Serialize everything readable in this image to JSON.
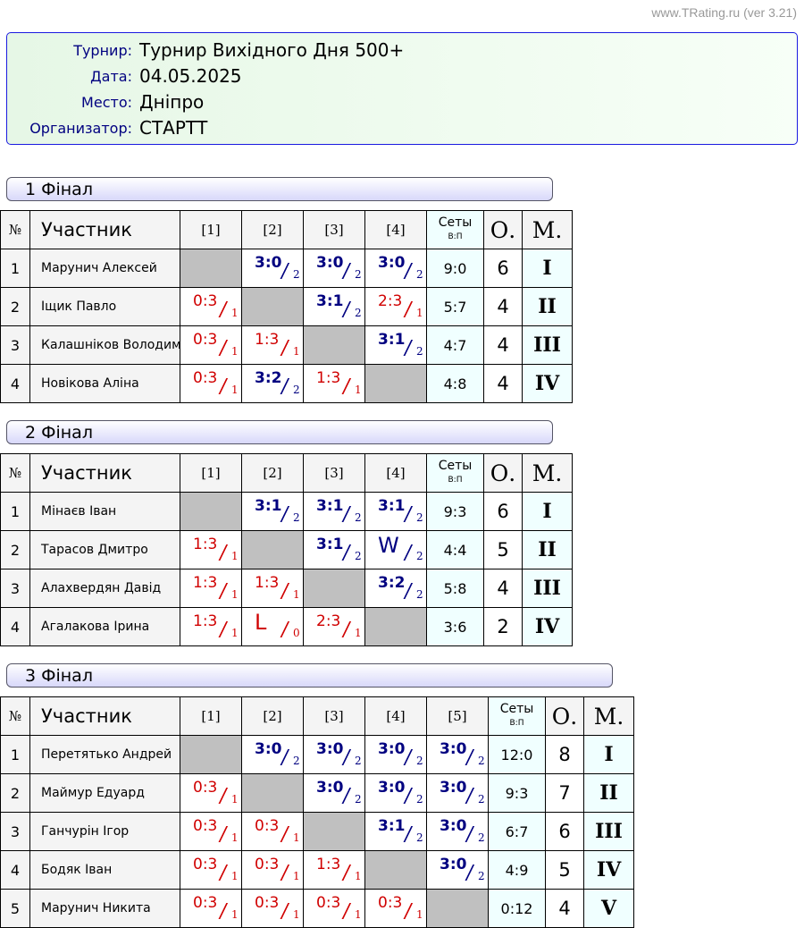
{
  "site": "www.TRating.ru (ver 3.21)",
  "info": [
    {
      "label": "Турнир:",
      "value": "Турнир Вихідного Дня 500+"
    },
    {
      "label": "Дата:",
      "value": "04.05.2025"
    },
    {
      "label": "Место:",
      "value": "Дніпро"
    },
    {
      "label": "Организатор:",
      "value": "СТАРТТ"
    }
  ],
  "headers": {
    "num": "№",
    "name": "Участник",
    "sets": "Сеты",
    "sets_sub": "В:П",
    "points": "О.",
    "place": "М."
  },
  "colors": {
    "win": "#000080",
    "loss": "#d00000",
    "self": "#c0c0c0"
  },
  "groups": [
    {
      "title": "1 Фінал",
      "players": [
        {
          "num": "1",
          "name": "Марунич Алексей",
          "results": [
            null,
            {
              "s": "3:0",
              "p": "2",
              "w": true
            },
            {
              "s": "3:0",
              "p": "2",
              "w": true
            },
            {
              "s": "3:0",
              "p": "2",
              "w": true
            }
          ],
          "sets": "9:0",
          "points": "6",
          "place": "I"
        },
        {
          "num": "2",
          "name": "Іщик Павло",
          "results": [
            {
              "s": "0:3",
              "p": "1",
              "w": false
            },
            null,
            {
              "s": "3:1",
              "p": "2",
              "w": true
            },
            {
              "s": "2:3",
              "p": "1",
              "w": false
            }
          ],
          "sets": "5:7",
          "points": "4",
          "place": "II"
        },
        {
          "num": "3",
          "name": "Калашніков Володимир",
          "results": [
            {
              "s": "0:3",
              "p": "1",
              "w": false
            },
            {
              "s": "1:3",
              "p": "1",
              "w": false
            },
            null,
            {
              "s": "3:1",
              "p": "2",
              "w": true
            }
          ],
          "sets": "4:7",
          "points": "4",
          "place": "III"
        },
        {
          "num": "4",
          "name": "Новікова Аліна",
          "results": [
            {
              "s": "0:3",
              "p": "1",
              "w": false
            },
            {
              "s": "3:2",
              "p": "2",
              "w": true
            },
            {
              "s": "1:3",
              "p": "1",
              "w": false
            },
            null
          ],
          "sets": "4:8",
          "points": "4",
          "place": "IV"
        }
      ]
    },
    {
      "title": "2 Фінал",
      "players": [
        {
          "num": "1",
          "name": "Мінаєв Іван",
          "results": [
            null,
            {
              "s": "3:1",
              "p": "2",
              "w": true
            },
            {
              "s": "3:1",
              "p": "2",
              "w": true
            },
            {
              "s": "3:1",
              "p": "2",
              "w": true
            }
          ],
          "sets": "9:3",
          "points": "6",
          "place": "I"
        },
        {
          "num": "2",
          "name": "Тарасов Дмитро",
          "results": [
            {
              "s": "1:3",
              "p": "1",
              "w": false
            },
            null,
            {
              "s": "3:1",
              "p": "2",
              "w": true
            },
            {
              "s": "W",
              "p": "2",
              "w": true
            }
          ],
          "sets": "4:4",
          "points": "5",
          "place": "II"
        },
        {
          "num": "3",
          "name": "Алахвердян Давід",
          "results": [
            {
              "s": "1:3",
              "p": "1",
              "w": false
            },
            {
              "s": "1:3",
              "p": "1",
              "w": false
            },
            null,
            {
              "s": "3:2",
              "p": "2",
              "w": true
            }
          ],
          "sets": "5:8",
          "points": "4",
          "place": "III"
        },
        {
          "num": "4",
          "name": "Агалакова Ірина",
          "results": [
            {
              "s": "1:3",
              "p": "1",
              "w": false
            },
            {
              "s": "L",
              "p": "0",
              "w": false
            },
            {
              "s": "2:3",
              "p": "1",
              "w": false
            },
            null
          ],
          "sets": "3:6",
          "points": "2",
          "place": "IV"
        }
      ]
    },
    {
      "title": "3 Фінал",
      "players": [
        {
          "num": "1",
          "name": "Перетятько Андрей",
          "results": [
            null,
            {
              "s": "3:0",
              "p": "2",
              "w": true
            },
            {
              "s": "3:0",
              "p": "2",
              "w": true
            },
            {
              "s": "3:0",
              "p": "2",
              "w": true
            },
            {
              "s": "3:0",
              "p": "2",
              "w": true
            }
          ],
          "sets": "12:0",
          "points": "8",
          "place": "I"
        },
        {
          "num": "2",
          "name": "Маймур Едуард",
          "results": [
            {
              "s": "0:3",
              "p": "1",
              "w": false
            },
            null,
            {
              "s": "3:0",
              "p": "2",
              "w": true
            },
            {
              "s": "3:0",
              "p": "2",
              "w": true
            },
            {
              "s": "3:0",
              "p": "2",
              "w": true
            }
          ],
          "sets": "9:3",
          "points": "7",
          "place": "II"
        },
        {
          "num": "3",
          "name": "Ганчурін Ігор",
          "results": [
            {
              "s": "0:3",
              "p": "1",
              "w": false
            },
            {
              "s": "0:3",
              "p": "1",
              "w": false
            },
            null,
            {
              "s": "3:1",
              "p": "2",
              "w": true
            },
            {
              "s": "3:0",
              "p": "2",
              "w": true
            }
          ],
          "sets": "6:7",
          "points": "6",
          "place": "III"
        },
        {
          "num": "4",
          "name": "Бодяк Іван",
          "results": [
            {
              "s": "0:3",
              "p": "1",
              "w": false
            },
            {
              "s": "0:3",
              "p": "1",
              "w": false
            },
            {
              "s": "1:3",
              "p": "1",
              "w": false
            },
            null,
            {
              "s": "3:0",
              "p": "2",
              "w": true
            }
          ],
          "sets": "4:9",
          "points": "5",
          "place": "IV"
        },
        {
          "num": "5",
          "name": "Марунич Никита",
          "results": [
            {
              "s": "0:3",
              "p": "1",
              "w": false
            },
            {
              "s": "0:3",
              "p": "1",
              "w": false
            },
            {
              "s": "0:3",
              "p": "1",
              "w": false
            },
            {
              "s": "0:3",
              "p": "1",
              "w": false
            },
            null
          ],
          "sets": "0:12",
          "points": "4",
          "place": "V"
        }
      ]
    }
  ]
}
